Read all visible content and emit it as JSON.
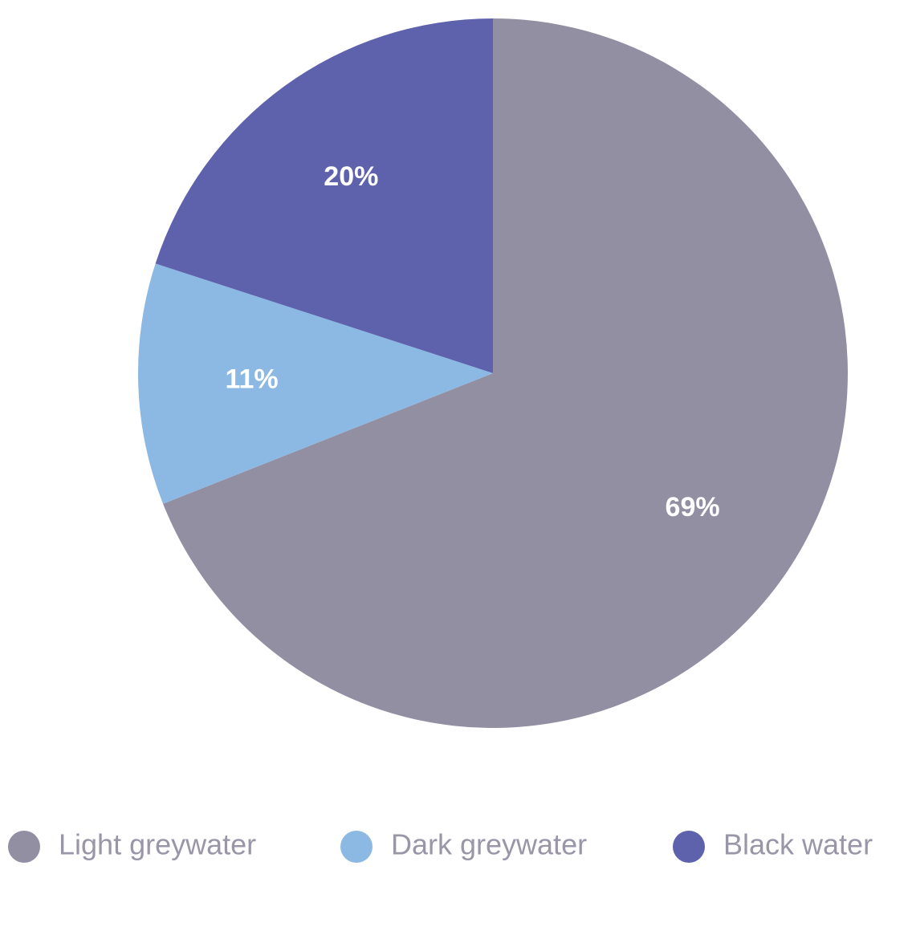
{
  "chart_data": {
    "type": "pie",
    "categories": [
      "Light greywater",
      "Dark greywater",
      "Black water"
    ],
    "values": [
      69,
      11,
      20
    ],
    "value_labels": [
      "69%",
      "11%",
      "20%"
    ],
    "colors": [
      "#938fa3",
      "#8bb9e3",
      "#5e62ad"
    ],
    "legend": "bottom"
  }
}
